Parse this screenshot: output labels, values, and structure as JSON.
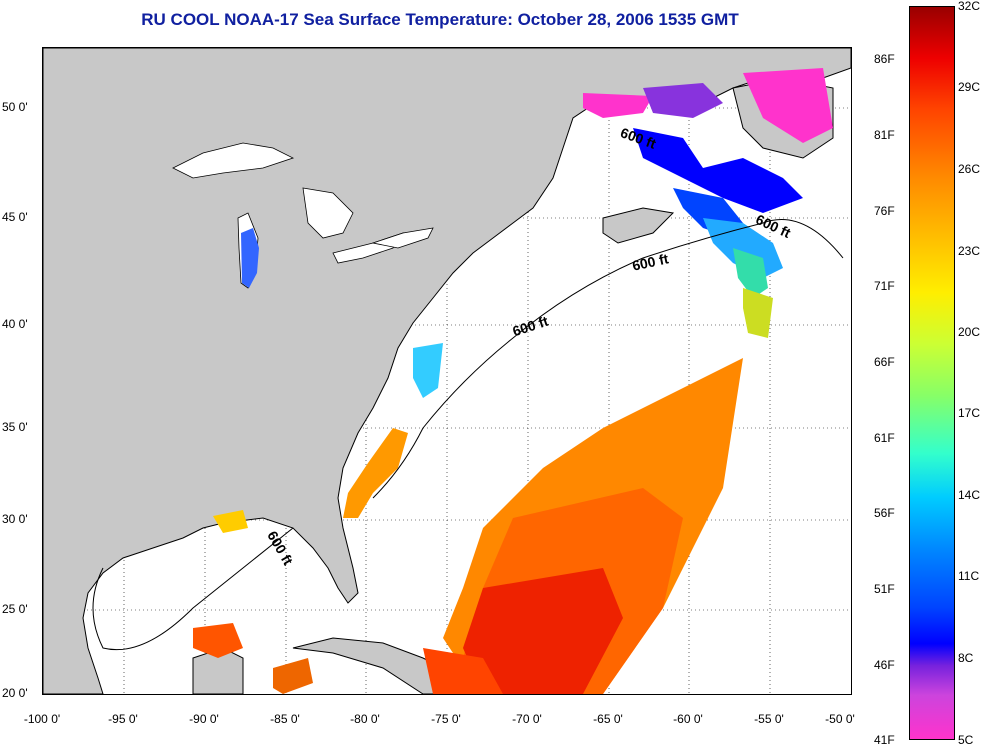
{
  "title": "RU COOL  NOAA-17  Sea Surface Temperature:  October 28, 2006 1535 GMT",
  "x_axis_labels": [
    "-100 0'",
    "-95 0'",
    "-90 0'",
    "-85 0'",
    "-80 0'",
    "-75 0'",
    "-70 0'",
    "-65 0'",
    "-60 0'",
    "-55 0'",
    "-50 0'"
  ],
  "y_axis_labels": [
    "50 0'",
    "45 0'",
    "40 0'",
    "35 0'",
    "30 0'",
    "25 0'",
    "20 0'"
  ],
  "colorbar": {
    "fahrenheit_labels": [
      "86F",
      "81F",
      "76F",
      "71F",
      "66F",
      "61F",
      "56F",
      "51F",
      "46F",
      "41F"
    ],
    "celsius_labels": [
      "32C",
      "29C",
      "26C",
      "23C",
      "20C",
      "17C",
      "14C",
      "11C",
      "8C",
      "5C"
    ]
  },
  "contour_labels": [
    "600 ft",
    "600 ft",
    "600 ft",
    "600 ft",
    "600 ft"
  ],
  "colors": {
    "land": "#c8c8c8",
    "title": "#1020a0"
  }
}
